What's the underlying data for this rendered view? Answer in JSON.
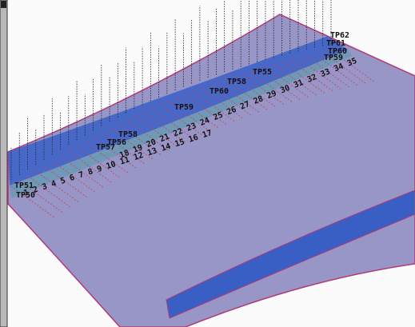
{
  "view": {
    "point_labels": [
      "TP62",
      "TP61",
      "TP60",
      "TP59",
      "TP55",
      "TP58",
      "TP60",
      "TP59",
      "TP58",
      "TP57",
      "TP56",
      "TP51",
      "TP50"
    ],
    "station_numbers": [
      "1 2 3 4 5 6 7 8 9 10 11 12 13 14 15 16 17",
      "18 19 20 21 22 23 24 25 26 27 28 29 30 31 32 33 34 35"
    ]
  }
}
